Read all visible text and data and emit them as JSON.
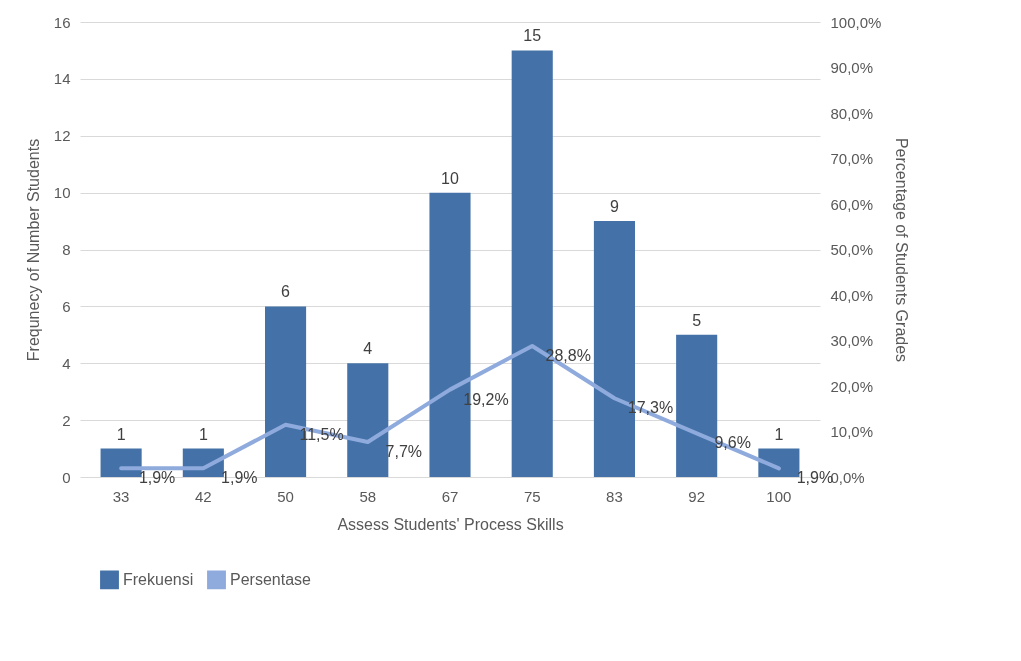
{
  "chart_data": {
    "type": "bar",
    "xlabel": "Assess Students' Process Skills",
    "ylabel": "Frequnecy of Number Students",
    "y2label": "Percentage of Students Grades",
    "categories": [
      "33",
      "42",
      "50",
      "58",
      "67",
      "75",
      "83",
      "92",
      "100"
    ],
    "series": [
      {
        "name": "Frekuensi",
        "color": "#4472a8",
        "values": [
          1,
          1,
          6,
          4,
          10,
          15,
          9,
          5,
          1
        ],
        "value_labels": [
          "1",
          "1",
          "6",
          "4",
          "10",
          "15",
          "9",
          "5",
          "1"
        ]
      },
      {
        "name": "Persentase",
        "type": "line",
        "axis": "y2",
        "color": "#8faadc",
        "values": [
          1.9,
          1.9,
          11.5,
          7.7,
          19.2,
          28.8,
          17.3,
          9.6,
          1.9
        ],
        "value_labels": [
          "1,9%",
          "1,9%",
          "11,5%",
          "7,7%",
          "19,2%",
          "28,8%",
          "17,3%",
          "9,6%",
          "1,9%"
        ]
      }
    ],
    "ylim": [
      0,
      16
    ],
    "yticks": [
      0,
      2,
      4,
      6,
      8,
      10,
      12,
      14,
      16
    ],
    "y2lim": [
      0,
      100
    ],
    "y2ticks": [
      {
        "value": 0,
        "label": "0,0%"
      },
      {
        "value": 10,
        "label": "10,0%"
      },
      {
        "value": 20,
        "label": "20,0%"
      },
      {
        "value": 30,
        "label": "30,0%"
      },
      {
        "value": 40,
        "label": "40,0%"
      },
      {
        "value": 50,
        "label": "50,0%"
      },
      {
        "value": 60,
        "label": "60,0%"
      },
      {
        "value": 70,
        "label": "70,0%"
      },
      {
        "value": 80,
        "label": "80,0%"
      },
      {
        "value": 90,
        "label": "90,0%"
      },
      {
        "value": 100,
        "label": "100,0%"
      }
    ],
    "grid": "y",
    "legend": "bottom",
    "marker": "none",
    "line_style": "solid"
  }
}
